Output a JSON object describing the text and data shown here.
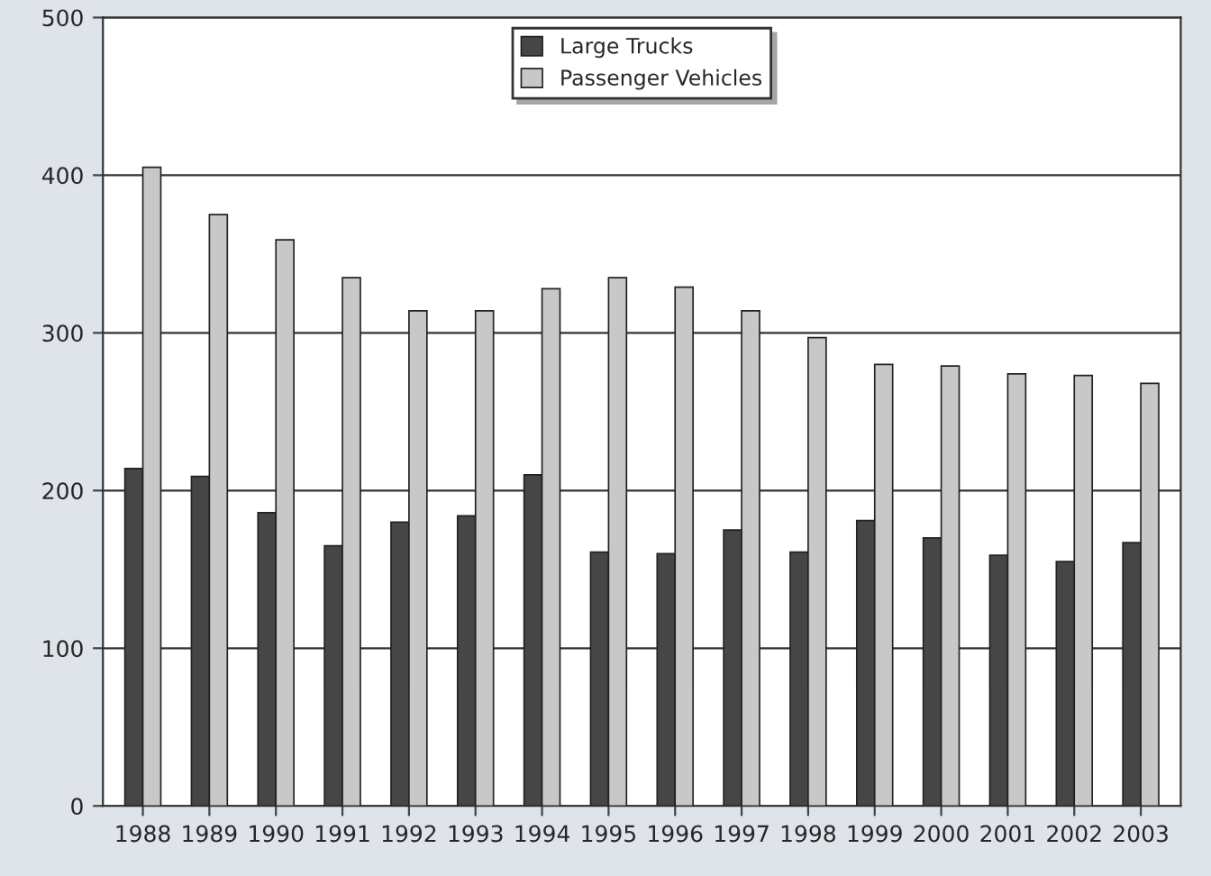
{
  "chart_data": {
    "type": "bar",
    "categories": [
      "1988",
      "1989",
      "1990",
      "1991",
      "1992",
      "1993",
      "1994",
      "1995",
      "1996",
      "1997",
      "1998",
      "1999",
      "2000",
      "2001",
      "2002",
      "2003"
    ],
    "series": [
      {
        "name": "Large Trucks",
        "color": "#464646",
        "values": [
          214,
          209,
          186,
          165,
          180,
          184,
          210,
          161,
          160,
          175,
          161,
          181,
          170,
          159,
          155,
          167
        ]
      },
      {
        "name": "Passenger Vehicles",
        "color": "#c8c8c8",
        "values": [
          405,
          375,
          359,
          335,
          314,
          314,
          328,
          335,
          329,
          314,
          297,
          280,
          279,
          274,
          273,
          268
        ]
      }
    ],
    "ylim": [
      0,
      500
    ],
    "yticks": [
      0,
      100,
      200,
      300,
      400,
      500
    ],
    "grid": "y",
    "legend": "top"
  }
}
